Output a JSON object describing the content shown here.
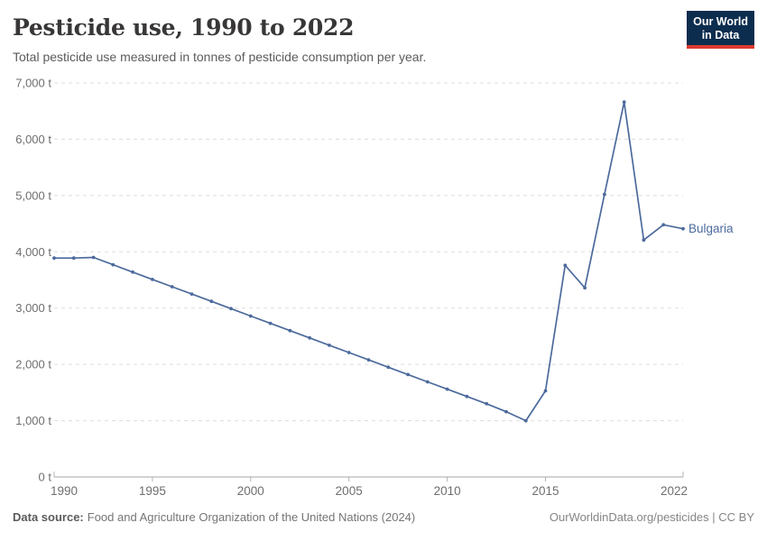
{
  "header": {
    "title": "Pesticide use, 1990 to 2022",
    "subtitle": "Total pesticide use measured in tonnes of pesticide consumption per year."
  },
  "logo": {
    "line1": "Our World",
    "line2": "in Data",
    "bg_color": "#0c2d4e",
    "accent_color": "#dc3a2e"
  },
  "chart_data": {
    "type": "line",
    "title": "Pesticide use, 1990 to 2022",
    "unit": "tonnes of pesticide consumption per year",
    "x": [
      1990,
      1991,
      1992,
      1993,
      1994,
      1995,
      1996,
      1997,
      1998,
      1999,
      2000,
      2001,
      2002,
      2003,
      2004,
      2005,
      2006,
      2007,
      2008,
      2009,
      2010,
      2011,
      2012,
      2013,
      2014,
      2015,
      2016,
      2017,
      2018,
      2019,
      2020,
      2021,
      2022
    ],
    "series": [
      {
        "name": "Bulgaria",
        "color": "#4C6A9C",
        "values": [
          3890,
          3890,
          3900,
          3770,
          3640,
          3510,
          3380,
          3250,
          3120,
          2990,
          2860,
          2730,
          2600,
          2470,
          2340,
          2210,
          2080,
          1950,
          1820,
          1690,
          1560,
          1430,
          1300,
          1160,
          1000,
          1530,
          3760,
          3360,
          5020,
          6660,
          4210,
          4480,
          4410
        ]
      }
    ],
    "ylim": [
      0,
      7000
    ],
    "yticks": [
      {
        "value": 0,
        "label": "0 t"
      },
      {
        "value": 1000,
        "label": "1,000 t"
      },
      {
        "value": 2000,
        "label": "2,000 t"
      },
      {
        "value": 3000,
        "label": "3,000 t"
      },
      {
        "value": 4000,
        "label": "4,000 t"
      },
      {
        "value": 5000,
        "label": "5,000 t"
      },
      {
        "value": 6000,
        "label": "6,000 t"
      },
      {
        "value": 7000,
        "label": "7,000 t"
      }
    ],
    "xticks": [
      {
        "value": 1990,
        "label": "1990"
      },
      {
        "value": 1995,
        "label": "1995"
      },
      {
        "value": 2000,
        "label": "2000"
      },
      {
        "value": 2005,
        "label": "2005"
      },
      {
        "value": 2010,
        "label": "2010"
      },
      {
        "value": 2015,
        "label": "2015"
      },
      {
        "value": 2022,
        "label": "2022"
      }
    ],
    "grid": "horizontal-dashed",
    "legend": "end-of-line-label"
  },
  "footer": {
    "datasource_label": "Data source:",
    "datasource_text": "Food and Agriculture Organization of the United Nations (2024)",
    "credit": "OurWorldinData.org/pesticides | CC BY"
  }
}
